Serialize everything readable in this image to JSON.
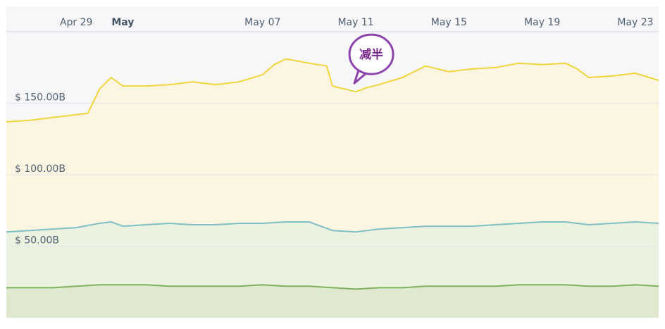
{
  "chart_data": {
    "type": "area",
    "x_range": [
      "2020-04-26",
      "2020-05-24"
    ],
    "x_ticks": [
      {
        "label": "Apr 29",
        "date": "2020-04-29",
        "bold": false
      },
      {
        "label": "May",
        "date": "2020-05-01",
        "bold": true
      },
      {
        "label": "May 07",
        "date": "2020-05-07",
        "bold": false
      },
      {
        "label": "May 11",
        "date": "2020-05-11",
        "bold": false
      },
      {
        "label": "May 15",
        "date": "2020-05-15",
        "bold": false
      },
      {
        "label": "May 19",
        "date": "2020-05-19",
        "bold": false
      },
      {
        "label": "May 23",
        "date": "2020-05-23",
        "bold": false
      }
    ],
    "y_ticks": [
      {
        "label": "$ 50.00B",
        "value": 50
      },
      {
        "label": "$ 100.00B",
        "value": 100
      },
      {
        "label": "$ 150.00B",
        "value": 150
      }
    ],
    "ylim": [
      0,
      200
    ],
    "grid": true,
    "annotation": {
      "text": "减半",
      "date": "2020-05-11",
      "value": 162
    },
    "series": [
      {
        "color": "#f0d53c",
        "fill": "#fbf5e2",
        "points": [
          [
            "2020-04-26",
            137
          ],
          [
            "2020-04-27",
            138
          ],
          [
            "2020-04-28",
            140
          ],
          [
            "2020-04-29",
            142
          ],
          [
            "2020-04-29T12:00",
            143
          ],
          [
            "2020-04-30",
            160
          ],
          [
            "2020-04-30T12:00",
            168
          ],
          [
            "2020-05-01",
            162
          ],
          [
            "2020-05-02",
            162
          ],
          [
            "2020-05-03",
            163
          ],
          [
            "2020-05-04",
            165
          ],
          [
            "2020-05-05",
            163
          ],
          [
            "2020-05-06",
            165
          ],
          [
            "2020-05-07",
            170
          ],
          [
            "2020-05-07T12:00",
            177
          ],
          [
            "2020-05-08",
            181
          ],
          [
            "2020-05-09",
            178
          ],
          [
            "2020-05-09T18:00",
            176
          ],
          [
            "2020-05-10",
            162
          ],
          [
            "2020-05-10T12:00",
            160
          ],
          [
            "2020-05-11",
            158
          ],
          [
            "2020-05-11T12:00",
            161
          ],
          [
            "2020-05-12",
            163
          ],
          [
            "2020-05-13",
            168
          ],
          [
            "2020-05-14",
            176
          ],
          [
            "2020-05-15",
            172
          ],
          [
            "2020-05-16",
            174
          ],
          [
            "2020-05-17",
            175
          ],
          [
            "2020-05-18",
            178
          ],
          [
            "2020-05-19",
            177
          ],
          [
            "2020-05-20",
            178
          ],
          [
            "2020-05-20T12:00",
            174
          ],
          [
            "2020-05-21",
            168
          ],
          [
            "2020-05-22",
            169
          ],
          [
            "2020-05-23",
            171
          ],
          [
            "2020-05-24",
            166
          ]
        ]
      },
      {
        "color": "#7fbfc6",
        "fill": "#ecf2e0",
        "points": [
          [
            "2020-04-26",
            60
          ],
          [
            "2020-04-27",
            61
          ],
          [
            "2020-04-28",
            62
          ],
          [
            "2020-04-29",
            63
          ],
          [
            "2020-04-30",
            66
          ],
          [
            "2020-04-30T12:00",
            67
          ],
          [
            "2020-05-01",
            64
          ],
          [
            "2020-05-02",
            65
          ],
          [
            "2020-05-03",
            66
          ],
          [
            "2020-05-04",
            65
          ],
          [
            "2020-05-05",
            65
          ],
          [
            "2020-05-06",
            66
          ],
          [
            "2020-05-07",
            66
          ],
          [
            "2020-05-08",
            67
          ],
          [
            "2020-05-09",
            67
          ],
          [
            "2020-05-10",
            61
          ],
          [
            "2020-05-11",
            60
          ],
          [
            "2020-05-12",
            62
          ],
          [
            "2020-05-13",
            63
          ],
          [
            "2020-05-14",
            64
          ],
          [
            "2020-05-15",
            64
          ],
          [
            "2020-05-16",
            64
          ],
          [
            "2020-05-17",
            65
          ],
          [
            "2020-05-18",
            66
          ],
          [
            "2020-05-19",
            67
          ],
          [
            "2020-05-20",
            67
          ],
          [
            "2020-05-21",
            65
          ],
          [
            "2020-05-22",
            66
          ],
          [
            "2020-05-23",
            67
          ],
          [
            "2020-05-24",
            66
          ]
        ]
      },
      {
        "color": "#7db35b",
        "fill": "#dfe9d0",
        "points": [
          [
            "2020-04-26",
            21
          ],
          [
            "2020-04-27",
            21
          ],
          [
            "2020-04-28",
            21
          ],
          [
            "2020-04-29",
            22
          ],
          [
            "2020-04-30",
            23
          ],
          [
            "2020-05-01",
            23
          ],
          [
            "2020-05-02",
            23
          ],
          [
            "2020-05-03",
            22
          ],
          [
            "2020-05-04",
            22
          ],
          [
            "2020-05-05",
            22
          ],
          [
            "2020-05-06",
            22
          ],
          [
            "2020-05-07",
            23
          ],
          [
            "2020-05-08",
            22
          ],
          [
            "2020-05-09",
            22
          ],
          [
            "2020-05-10",
            21
          ],
          [
            "2020-05-11",
            20
          ],
          [
            "2020-05-12",
            21
          ],
          [
            "2020-05-13",
            21
          ],
          [
            "2020-05-14",
            22
          ],
          [
            "2020-05-15",
            22
          ],
          [
            "2020-05-16",
            22
          ],
          [
            "2020-05-17",
            22
          ],
          [
            "2020-05-18",
            23
          ],
          [
            "2020-05-19",
            23
          ],
          [
            "2020-05-20",
            23
          ],
          [
            "2020-05-21",
            22
          ],
          [
            "2020-05-22",
            22
          ],
          [
            "2020-05-23",
            23
          ],
          [
            "2020-05-24",
            22
          ]
        ]
      }
    ]
  },
  "colors": {
    "plot_bg": "#f7f7fa",
    "grid": "#e3e6ea",
    "axis_line": "#ccd6eb",
    "annotation_stroke": "#8e44ad",
    "annotation_fill": "#ffffff"
  }
}
